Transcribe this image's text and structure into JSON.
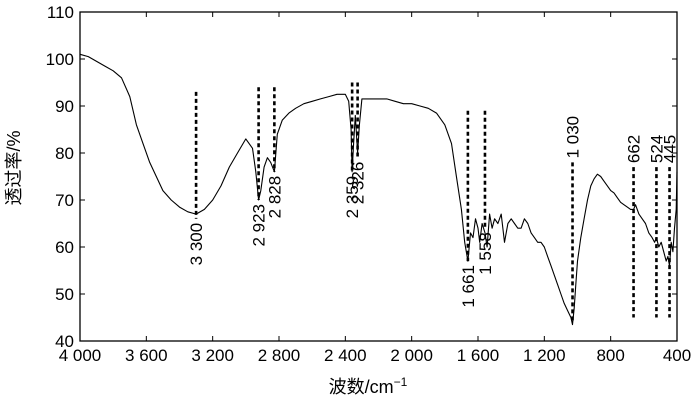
{
  "chart_data": {
    "type": "line",
    "xlabel": "波数/cm",
    "xlabel_sup": "−1",
    "ylabel": "透过率/%",
    "xlim": [
      4000,
      400
    ],
    "ylim": [
      40,
      110
    ],
    "x_reversed": true,
    "grid": false,
    "x_ticks": [
      4000,
      3600,
      3200,
      2800,
      2400,
      2000,
      1600,
      1200,
      800,
      400
    ],
    "x_tick_labels": [
      "4 000",
      "3 600",
      "3 200",
      "2 800",
      "2 400",
      "2 000",
      "1 600",
      "1 200",
      "800",
      "400"
    ],
    "y_ticks": [
      40,
      50,
      60,
      70,
      80,
      90,
      100,
      110
    ],
    "y_tick_labels": [
      "40",
      "50",
      "60",
      "70",
      "80",
      "90",
      "100",
      "110"
    ],
    "annotations": [
      {
        "x": 3300,
        "label": "3 300",
        "y_from": 66,
        "y_to": 93,
        "label_pos": "below"
      },
      {
        "x": 2923,
        "label": "2 923",
        "y_from": 70,
        "y_to": 94,
        "label_pos": "below"
      },
      {
        "x": 2828,
        "label": "2 828",
        "y_from": 76,
        "y_to": 94,
        "label_pos": "below"
      },
      {
        "x": 2359,
        "label": "2 359",
        "y_from": 76,
        "y_to": 95,
        "label_pos": "below"
      },
      {
        "x": 2326,
        "label": "2 326",
        "y_from": 79,
        "y_to": 95,
        "label_pos": "below"
      },
      {
        "x": 1661,
        "label": "1 661",
        "y_from": 57,
        "y_to": 89,
        "label_pos": "below"
      },
      {
        "x": 1558,
        "label": "1 558",
        "y_from": 64,
        "y_to": 89,
        "label_pos": "below"
      },
      {
        "x": 1030,
        "label": "1 030",
        "y_from": 44,
        "y_to": 78,
        "label_pos": "above"
      },
      {
        "x": 662,
        "label": "662",
        "y_from": 45,
        "y_to": 77,
        "label_pos": "above"
      },
      {
        "x": 524,
        "label": "524",
        "y_from": 45,
        "y_to": 77,
        "label_pos": "above"
      },
      {
        "x": 445,
        "label": "445",
        "y_from": 45,
        "y_to": 77,
        "label_pos": "above"
      }
    ],
    "series": [
      {
        "x": [
          4000,
          3950,
          3900,
          3850,
          3800,
          3750,
          3700,
          3660,
          3620,
          3580,
          3540,
          3500,
          3450,
          3400,
          3350,
          3300,
          3250,
          3200,
          3150,
          3100,
          3050,
          3000,
          2960,
          2940,
          2923,
          2910,
          2890,
          2870,
          2850,
          2828,
          2810,
          2780,
          2740,
          2700,
          2650,
          2600,
          2550,
          2500,
          2450,
          2400,
          2380,
          2365,
          2359,
          2350,
          2340,
          2326,
          2315,
          2300,
          2260,
          2200,
          2150,
          2100,
          2050,
          2000,
          1950,
          1900,
          1850,
          1800,
          1760,
          1730,
          1700,
          1680,
          1661,
          1645,
          1630,
          1615,
          1600,
          1590,
          1575,
          1558,
          1545,
          1530,
          1515,
          1500,
          1480,
          1460,
          1440,
          1420,
          1400,
          1380,
          1360,
          1340,
          1320,
          1300,
          1280,
          1260,
          1240,
          1220,
          1200,
          1180,
          1160,
          1140,
          1120,
          1100,
          1080,
          1060,
          1040,
          1030,
          1020,
          1010,
          1000,
          980,
          960,
          940,
          920,
          900,
          880,
          860,
          840,
          820,
          800,
          780,
          760,
          740,
          720,
          700,
          680,
          662,
          650,
          630,
          610,
          590,
          570,
          550,
          535,
          524,
          510,
          495,
          480,
          465,
          455,
          445,
          435,
          425,
          415,
          405,
          400
        ],
        "y": [
          101,
          100.5,
          99.5,
          98.5,
          97.5,
          96,
          92,
          86,
          82,
          78,
          75,
          72,
          70,
          68.5,
          67.5,
          67,
          68,
          70,
          73,
          77,
          80,
          83,
          81,
          76,
          70,
          72,
          77,
          79,
          78,
          76,
          84,
          87,
          88.5,
          89.5,
          90.5,
          91,
          91.5,
          92,
          92.5,
          92.5,
          91,
          85,
          76,
          82,
          88,
          80,
          86,
          91.5,
          91.5,
          91.5,
          91.5,
          91,
          90.5,
          90.5,
          90,
          89.5,
          88.5,
          86,
          82,
          75,
          68,
          61,
          57,
          63,
          62,
          66,
          64,
          61,
          65,
          63,
          60,
          67,
          64,
          66,
          65,
          67,
          61,
          65,
          66,
          65,
          64,
          64,
          66,
          65,
          63,
          62,
          61,
          61,
          60,
          58,
          56,
          54,
          52,
          50,
          48,
          46.5,
          45,
          43.5,
          47,
          52,
          57,
          62,
          66,
          70,
          73,
          74.5,
          75.5,
          75,
          74,
          73,
          72,
          71.5,
          70.5,
          69.5,
          69,
          68.5,
          68,
          68,
          69,
          67,
          66,
          65,
          63,
          62,
          61,
          62,
          60,
          61,
          59,
          57,
          58,
          56,
          61,
          59,
          64,
          68,
          76
        ]
      }
    ]
  }
}
